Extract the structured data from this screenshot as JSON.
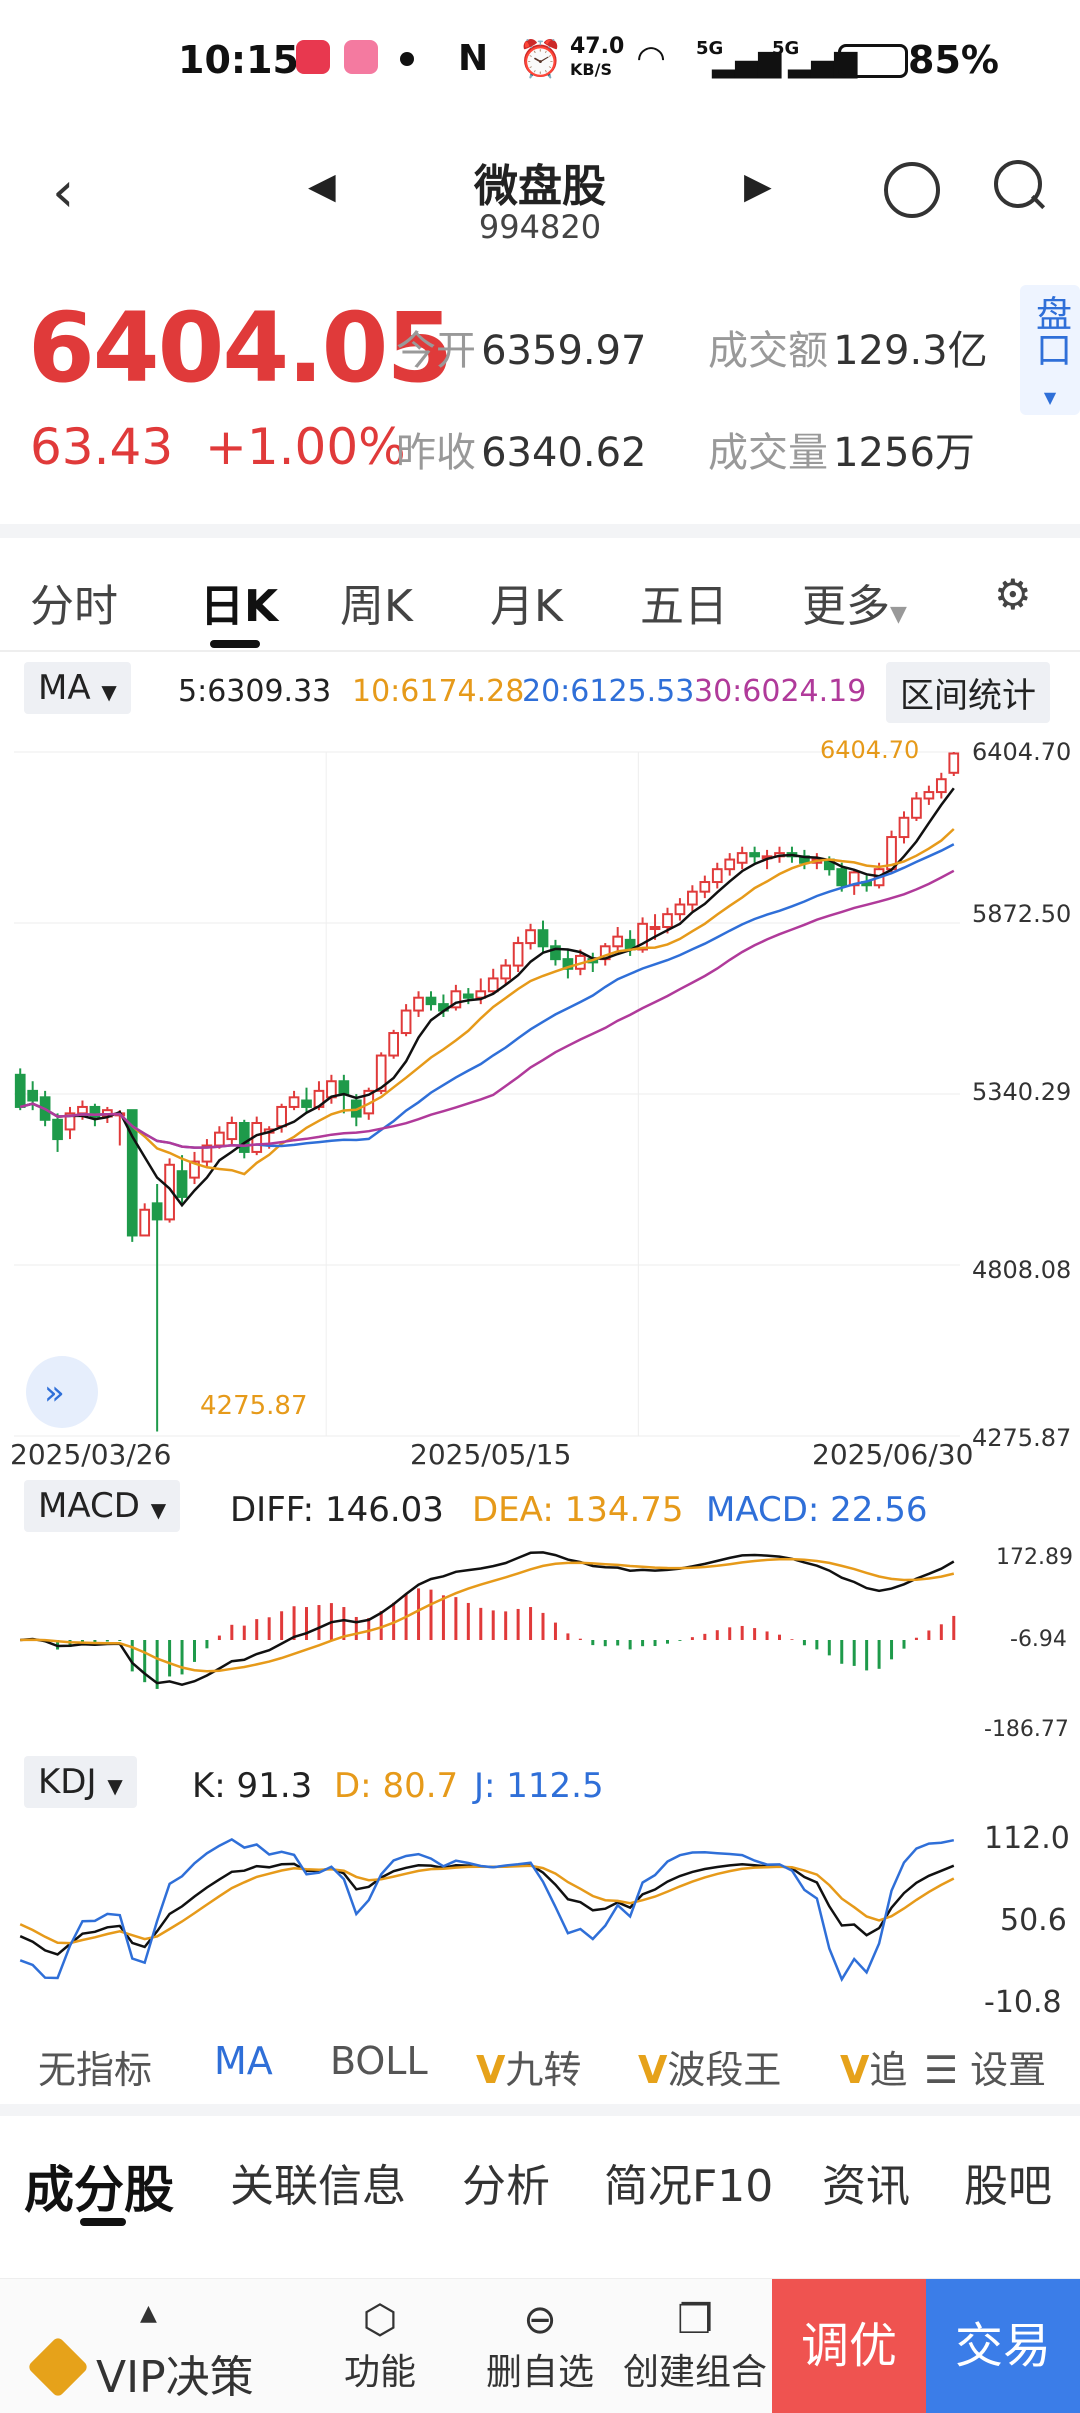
{
  "status_bar": {
    "time": "10:15",
    "network_speed": "47.0",
    "network_unit": "KB/S",
    "sig1": "5G",
    "sig2": "5G",
    "battery": "85%"
  },
  "header": {
    "title": "微盘股",
    "code": "994820"
  },
  "quote": {
    "price": "6404.05",
    "change": "63.43",
    "change_pct": "+1.00%",
    "open_label": "今开",
    "open_value": "6359.97",
    "prev_label": "昨收",
    "prev_value": "6340.62",
    "amount_label": "成交额",
    "amount_value": "129.3亿",
    "volume_label": "成交量",
    "volume_value": "1256万",
    "pankou": "盘口"
  },
  "period_tabs": [
    "分时",
    "日K",
    "周K",
    "月K",
    "五日",
    "更多"
  ],
  "ma_bar": {
    "selector": "MA",
    "ma5": "5:6309.33",
    "ma10": "10:6174.28",
    "ma20": "20:6125.53",
    "ma30": "30:6024.19",
    "range_button": "区间统计"
  },
  "main_axis": {
    "labels": [
      "6404.70",
      "5872.50",
      "5340.29",
      "4808.08",
      "4275.87"
    ],
    "high_mark": "6404.70",
    "low_mark": "4275.87"
  },
  "dates": [
    "2025/03/26",
    "2025/05/15",
    "2025/06/30"
  ],
  "macd": {
    "selector": "MACD",
    "diff": "DIFF: 146.03",
    "dea": "DEA: 134.75",
    "macd": "MACD: 22.56",
    "axis": [
      "172.89",
      "-6.94",
      "-186.77"
    ]
  },
  "kdj": {
    "selector": "KDJ",
    "k": "K: 91.3",
    "d": "D: 80.7",
    "j": "J: 112.5",
    "axis": [
      "112.0",
      "50.6",
      "-10.8"
    ]
  },
  "indicator_tabs": [
    "无指标",
    "MA",
    "BOLL",
    "九转",
    "波段王",
    "追",
    "设置"
  ],
  "bottom_tabs": [
    "成分股",
    "关联信息",
    "分析",
    "简况F10",
    "资讯",
    "股吧"
  ],
  "bottom_bar": {
    "vip": "VIP决策",
    "func": "功能",
    "remove": "删自选",
    "create": "创建组合",
    "tune": "调优",
    "trade": "交易"
  },
  "colors": {
    "up": "#e03a3a",
    "down": "#1e9a4a",
    "ma5": "#111111",
    "ma10": "#e69a1a",
    "ma20": "#2f6fd8",
    "ma30": "#b03a9a"
  },
  "chart_data": {
    "type": "candlestick",
    "y_range": [
      4275.87,
      6404.7
    ],
    "ma5_last": 6309.33,
    "ma10_last": 6174.28,
    "ma20_last": 6125.53,
    "ma30_last": 6024.19,
    "candles": [
      [
        5400,
        5300,
        5420,
        5290
      ],
      [
        5350,
        5320,
        5380,
        5290
      ],
      [
        5330,
        5260,
        5350,
        5240
      ],
      [
        5260,
        5200,
        5280,
        5160
      ],
      [
        5230,
        5280,
        5300,
        5200
      ],
      [
        5280,
        5300,
        5320,
        5260
      ],
      [
        5300,
        5270,
        5310,
        5240
      ],
      [
        5270,
        5290,
        5300,
        5250
      ],
      [
        5280,
        5280,
        5290,
        5180
      ],
      [
        5290,
        4900,
        5000,
        4880
      ],
      [
        4900,
        4980,
        5000,
        4950
      ],
      [
        5000,
        4950,
        5060,
        4290
      ],
      [
        4950,
        5120,
        5140,
        4940
      ],
      [
        5100,
        5020,
        5150,
        5000
      ],
      [
        5080,
        5130,
        5160,
        5060
      ],
      [
        5130,
        5180,
        5200,
        5110
      ],
      [
        5180,
        5220,
        5240,
        5170
      ],
      [
        5200,
        5250,
        5270,
        5180
      ],
      [
        5250,
        5160,
        5260,
        5140
      ],
      [
        5160,
        5250,
        5270,
        5150
      ],
      [
        5220,
        5230,
        5240,
        5170
      ],
      [
        5240,
        5300,
        5310,
        5220
      ],
      [
        5300,
        5330,
        5350,
        5290
      ],
      [
        5320,
        5300,
        5360,
        5280
      ],
      [
        5300,
        5350,
        5380,
        5290
      ],
      [
        5330,
        5380,
        5400,
        5310
      ],
      [
        5380,
        5340,
        5400,
        5280
      ],
      [
        5320,
        5270,
        5340,
        5240
      ],
      [
        5280,
        5350,
        5360,
        5260
      ],
      [
        5350,
        5460,
        5470,
        5340
      ],
      [
        5460,
        5530,
        5540,
        5450
      ],
      [
        5530,
        5600,
        5620,
        5520
      ],
      [
        5600,
        5640,
        5660,
        5580
      ],
      [
        5640,
        5620,
        5660,
        5600
      ],
      [
        5620,
        5600,
        5650,
        5580
      ],
      [
        5610,
        5660,
        5680,
        5600
      ],
      [
        5650,
        5640,
        5670,
        5620
      ],
      [
        5640,
        5660,
        5700,
        5620
      ],
      [
        5660,
        5700,
        5730,
        5650
      ],
      [
        5700,
        5740,
        5760,
        5680
      ],
      [
        5740,
        5810,
        5830,
        5720
      ],
      [
        5810,
        5850,
        5870,
        5790
      ],
      [
        5850,
        5800,
        5880,
        5780
      ],
      [
        5800,
        5760,
        5820,
        5740
      ],
      [
        5760,
        5730,
        5790,
        5700
      ],
      [
        5730,
        5770,
        5790,
        5710
      ],
      [
        5760,
        5750,
        5780,
        5720
      ],
      [
        5760,
        5800,
        5810,
        5740
      ],
      [
        5800,
        5830,
        5860,
        5780
      ],
      [
        5820,
        5790,
        5850,
        5770
      ],
      [
        5790,
        5870,
        5890,
        5780
      ],
      [
        5860,
        5860,
        5900,
        5820
      ],
      [
        5860,
        5900,
        5920,
        5840
      ],
      [
        5900,
        5930,
        5950,
        5880
      ],
      [
        5930,
        5970,
        5990,
        5910
      ],
      [
        5970,
        6000,
        6020,
        5950
      ],
      [
        6000,
        6040,
        6060,
        5980
      ],
      [
        6040,
        6070,
        6090,
        6020
      ],
      [
        6060,
        6090,
        6110,
        6040
      ],
      [
        6090,
        6080,
        6110,
        6060
      ],
      [
        6080,
        6080,
        6100,
        6040
      ],
      [
        6080,
        6090,
        6110,
        6060
      ],
      [
        6090,
        6080,
        6110,
        6060
      ],
      [
        6080,
        6060,
        6100,
        6040
      ],
      [
        6060,
        6070,
        6090,
        6040
      ],
      [
        6070,
        6040,
        6080,
        6020
      ],
      [
        6040,
        5990,
        6060,
        5970
      ],
      [
        5990,
        6030,
        6040,
        5960
      ],
      [
        6000,
        5990,
        6020,
        5970
      ],
      [
        5990,
        6040,
        6060,
        5980
      ],
      [
        6040,
        6140,
        6160,
        6030
      ],
      [
        6140,
        6200,
        6220,
        6120
      ],
      [
        6200,
        6260,
        6280,
        6190
      ],
      [
        6260,
        6280,
        6300,
        6240
      ],
      [
        6280,
        6320,
        6340,
        6260
      ],
      [
        6340,
        6400,
        6404.7,
        6330
      ]
    ]
  }
}
